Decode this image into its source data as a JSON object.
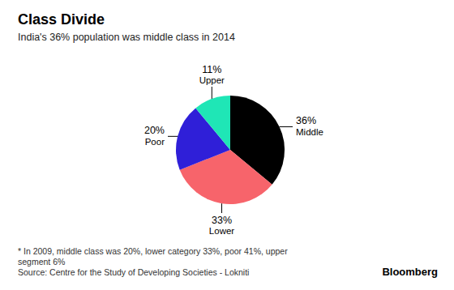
{
  "chart_data": {
    "type": "pie",
    "title": "Class Divide",
    "subtitle": "India's 36% population was middle class in 2014",
    "categories": [
      "Middle",
      "Lower",
      "Poor",
      "Upper"
    ],
    "values": [
      36,
      33,
      20,
      11
    ],
    "value_labels": [
      "36%",
      "33%",
      "20%",
      "11%"
    ],
    "colors": [
      "#000000",
      "#f7646b",
      "#2f1fd8",
      "#1fe6b6"
    ],
    "data_labels": true,
    "footnote": [
      "* In 2009, middle class was 20%, lower category 33%, poor 41%, upper",
      "segment 6%"
    ],
    "source": "Source: Centre for the Study of Developing Societies - Lokniti",
    "brand": "Bloomberg"
  }
}
